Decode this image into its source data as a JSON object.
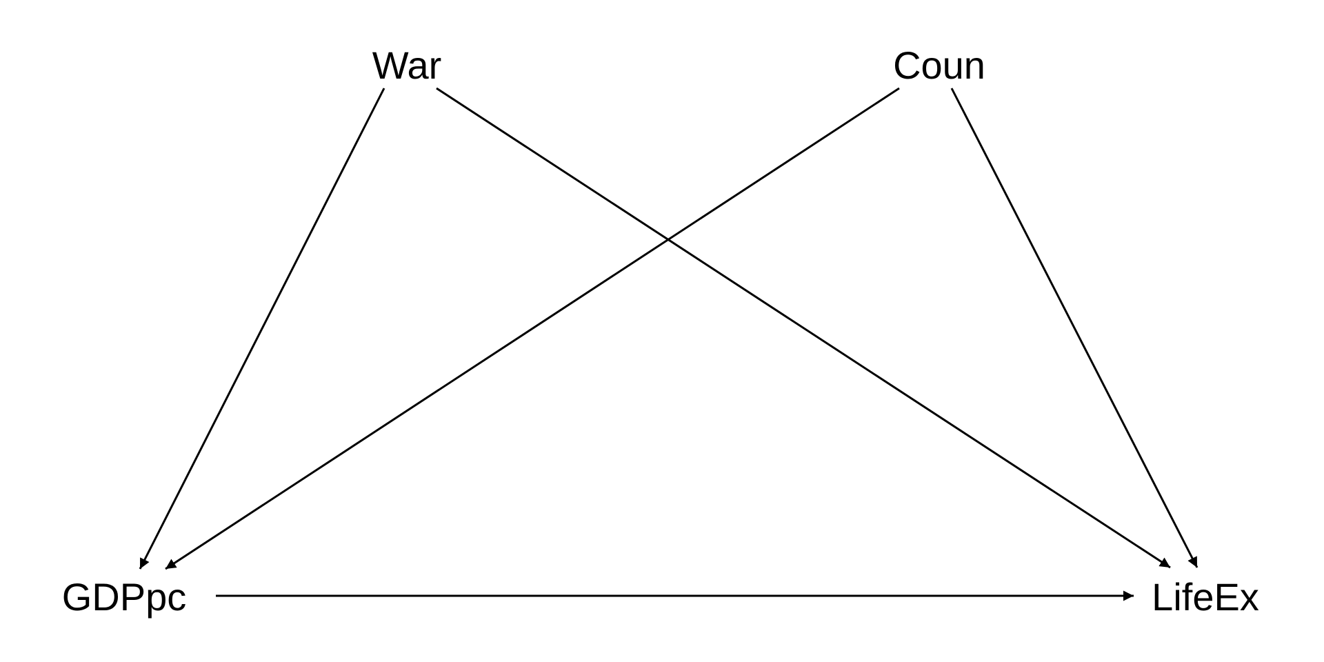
{
  "diagram": {
    "nodes": [
      {
        "id": "War",
        "label": "War"
      },
      {
        "id": "Coun",
        "label": "Coun"
      },
      {
        "id": "GDPpc",
        "label": "GDPpc"
      },
      {
        "id": "LifeEx",
        "label": "LifeEx"
      }
    ],
    "edges": [
      {
        "from": "War",
        "to": "GDPpc"
      },
      {
        "from": "War",
        "to": "LifeEx"
      },
      {
        "from": "Coun",
        "to": "GDPpc"
      },
      {
        "from": "Coun",
        "to": "LifeEx"
      },
      {
        "from": "GDPpc",
        "to": "LifeEx"
      }
    ],
    "colors": {
      "stroke": "#000000",
      "text": "#000000",
      "background": "#ffffff"
    }
  }
}
